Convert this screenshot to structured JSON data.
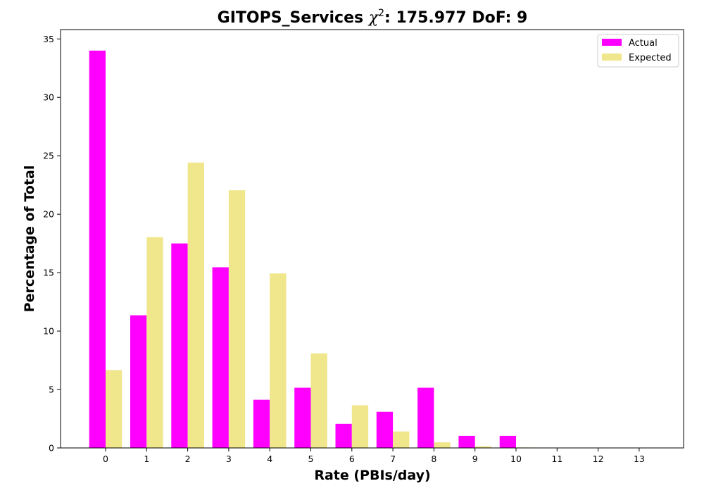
{
  "chart_data": {
    "type": "bar",
    "title": "GITOPS_Services χ²: 175.977 DoF: 9",
    "title_parts": {
      "prefix": "GITOPS_Services ",
      "chi": "χ",
      "sup": "2",
      "suffix": ": 175.977 DoF: 9"
    },
    "xlabel": "Rate (PBIs/day)",
    "ylabel": "Percentage of Total",
    "categories": [
      "0",
      "1",
      "2",
      "3",
      "4",
      "5",
      "6",
      "7",
      "8",
      "9",
      "10",
      "11",
      "12",
      "13"
    ],
    "ylim": [
      0,
      35.8
    ],
    "yticks": [
      0,
      5,
      10,
      15,
      20,
      25,
      30,
      35
    ],
    "grid": false,
    "legend_position": "top-right",
    "series": [
      {
        "name": "Actual",
        "color": "#ff00ff",
        "values": [
          34.0,
          11.35,
          17.5,
          15.46,
          4.12,
          5.15,
          2.06,
          3.09,
          5.15,
          1.03,
          1.03,
          0,
          0,
          0
        ]
      },
      {
        "name": "Expected",
        "color": "#f0e68c",
        "values": [
          6.66,
          18.03,
          24.42,
          22.05,
          14.93,
          8.09,
          3.65,
          1.41,
          0.48,
          0.14,
          0.04,
          0.01,
          0.0,
          0.0
        ]
      }
    ]
  }
}
